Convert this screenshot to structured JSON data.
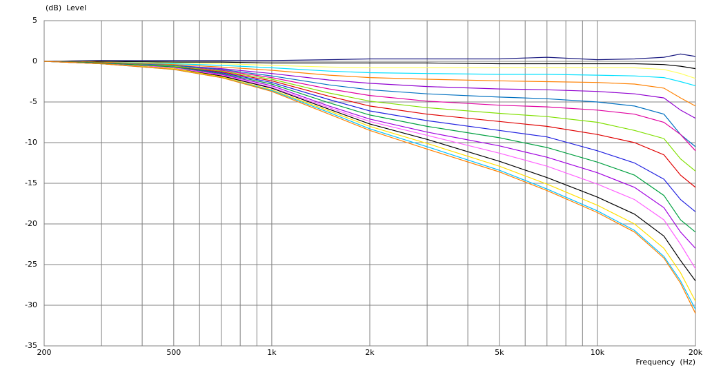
{
  "chart_data": {
    "type": "line",
    "y_label": "(dB)  Level",
    "x_label": "Frequency  (Hz)",
    "log_x": true,
    "grid": true,
    "xlim": [
      200,
      20000
    ],
    "ylim": [
      -35,
      5
    ],
    "xticks": [
      200,
      500,
      {
        "value": 1000,
        "label": "1k"
      },
      {
        "value": 2000,
        "label": "2k"
      },
      {
        "value": 5000,
        "label": "5k"
      },
      {
        "value": 10000,
        "label": "10k"
      },
      {
        "value": 20000,
        "label": "20k"
      }
    ],
    "x_minor_ticks": [
      300,
      400,
      600,
      700,
      800,
      900,
      3000,
      4000,
      6000,
      7000,
      8000,
      9000
    ],
    "yticks": [
      5,
      0,
      -5,
      -10,
      -15,
      -20,
      -25,
      -30,
      -35
    ],
    "x": [
      200,
      300,
      500,
      700,
      1000,
      1500,
      2000,
      3000,
      5000,
      7000,
      10000,
      13000,
      16000,
      18000,
      20000
    ],
    "series": [
      {
        "color": "#1a1a80",
        "values": [
          0,
          0.1,
          0.1,
          0.1,
          0.1,
          0.2,
          0.3,
          0.3,
          0.3,
          0.5,
          0.2,
          0.3,
          0.5,
          0.9,
          0.6
        ]
      },
      {
        "color": "#000000",
        "values": [
          0,
          0,
          -0.1,
          -0.1,
          -0.2,
          -0.2,
          -0.2,
          -0.2,
          -0.3,
          -0.3,
          -0.3,
          -0.3,
          -0.4,
          -0.6,
          -0.9
        ]
      },
      {
        "color": "#ffff60",
        "values": [
          0,
          -0.1,
          -0.2,
          -0.3,
          -0.5,
          -0.7,
          -0.8,
          -0.8,
          -0.8,
          -0.8,
          -0.8,
          -0.8,
          -1.0,
          -1.5,
          -2.1
        ]
      },
      {
        "color": "#00e0ff",
        "values": [
          0,
          -0.1,
          -0.3,
          -0.5,
          -0.8,
          -1.2,
          -1.4,
          -1.5,
          -1.6,
          -1.6,
          -1.7,
          -1.8,
          -2.0,
          -2.5,
          -3.0
        ]
      },
      {
        "color": "#ff8000",
        "values": [
          0,
          -0.1,
          -0.4,
          -0.7,
          -1.1,
          -1.7,
          -2.0,
          -2.2,
          -2.4,
          -2.5,
          -2.6,
          -2.8,
          -3.3,
          -4.5,
          -5.5
        ]
      },
      {
        "color": "#9000d0",
        "values": [
          0,
          -0.2,
          -0.5,
          -0.9,
          -1.5,
          -2.3,
          -2.7,
          -3.1,
          -3.4,
          -3.5,
          -3.7,
          -4.0,
          -4.5,
          -6.0,
          -7.0
        ]
      },
      {
        "color": "#0070c0",
        "values": [
          0,
          -0.2,
          -0.5,
          -1.0,
          -1.8,
          -2.9,
          -3.5,
          -4.0,
          -4.4,
          -4.6,
          -5.0,
          -5.5,
          -6.5,
          -9.0,
          -10.5
        ]
      },
      {
        "color": "#e000a0",
        "values": [
          0,
          -0.2,
          -0.6,
          -1.1,
          -2.0,
          -3.4,
          -4.2,
          -4.9,
          -5.4,
          -5.6,
          -6.0,
          -6.5,
          -7.5,
          -9.0,
          -11.0
        ]
      },
      {
        "color": "#80e000",
        "values": [
          0,
          -0.2,
          -0.6,
          -1.2,
          -2.2,
          -3.9,
          -4.9,
          -5.7,
          -6.4,
          -6.8,
          -7.5,
          -8.5,
          -9.5,
          -12,
          -13.5
        ]
      },
      {
        "color": "#e00000",
        "values": [
          0,
          -0.2,
          -0.7,
          -1.3,
          -2.4,
          -4.3,
          -5.5,
          -6.5,
          -7.4,
          -8.0,
          -9.0,
          -10.0,
          -11.5,
          -14,
          -15.5
        ]
      },
      {
        "color": "#2020e0",
        "values": [
          0,
          -0.2,
          -0.7,
          -1.4,
          -2.6,
          -4.7,
          -6.1,
          -7.3,
          -8.5,
          -9.3,
          -11.0,
          -12.5,
          -14.5,
          -17,
          -18.5
        ]
      },
      {
        "color": "#00a040",
        "values": [
          0,
          -0.2,
          -0.7,
          -1.5,
          -2.8,
          -5.1,
          -6.6,
          -8.0,
          -9.4,
          -10.6,
          -12.4,
          -14.0,
          -16.5,
          -19.5,
          -21
        ]
      },
      {
        "color": "#a000e0",
        "values": [
          0,
          -0.3,
          -0.8,
          -1.6,
          -3.0,
          -5.5,
          -7.1,
          -8.7,
          -10.4,
          -11.8,
          -13.7,
          -15.5,
          -18,
          -21,
          -23
        ]
      },
      {
        "color": "#ff60ff",
        "values": [
          0,
          -0.3,
          -0.8,
          -1.7,
          -3.2,
          -5.7,
          -7.4,
          -9.1,
          -11.3,
          -12.9,
          -15.1,
          -17,
          -19.5,
          -22.5,
          -25.5
        ]
      },
      {
        "color": "#000000",
        "values": [
          0,
          -0.3,
          -0.9,
          -1.8,
          -3.3,
          -5.9,
          -7.7,
          -9.6,
          -12.3,
          -14.3,
          -16.7,
          -18.8,
          -21.5,
          -24.5,
          -27
        ]
      },
      {
        "color": "#ffe000",
        "values": [
          0,
          -0.3,
          -0.9,
          -1.9,
          -3.5,
          -6.1,
          -8.0,
          -10.1,
          -12.9,
          -15.1,
          -17.7,
          -20,
          -23,
          -26,
          -29.5
        ]
      },
      {
        "color": "#00c0ff",
        "values": [
          0,
          -0.3,
          -1.0,
          -2.0,
          -3.6,
          -6.3,
          -8.3,
          -10.5,
          -13.4,
          -15.7,
          -18.4,
          -20.8,
          -24,
          -27,
          -30.5
        ]
      },
      {
        "color": "#ff8000",
        "values": [
          0,
          -0.3,
          -1.0,
          -2.0,
          -3.7,
          -6.5,
          -8.5,
          -10.8,
          -13.6,
          -15.9,
          -18.6,
          -21,
          -24.2,
          -27.3,
          -31
        ]
      }
    ]
  }
}
